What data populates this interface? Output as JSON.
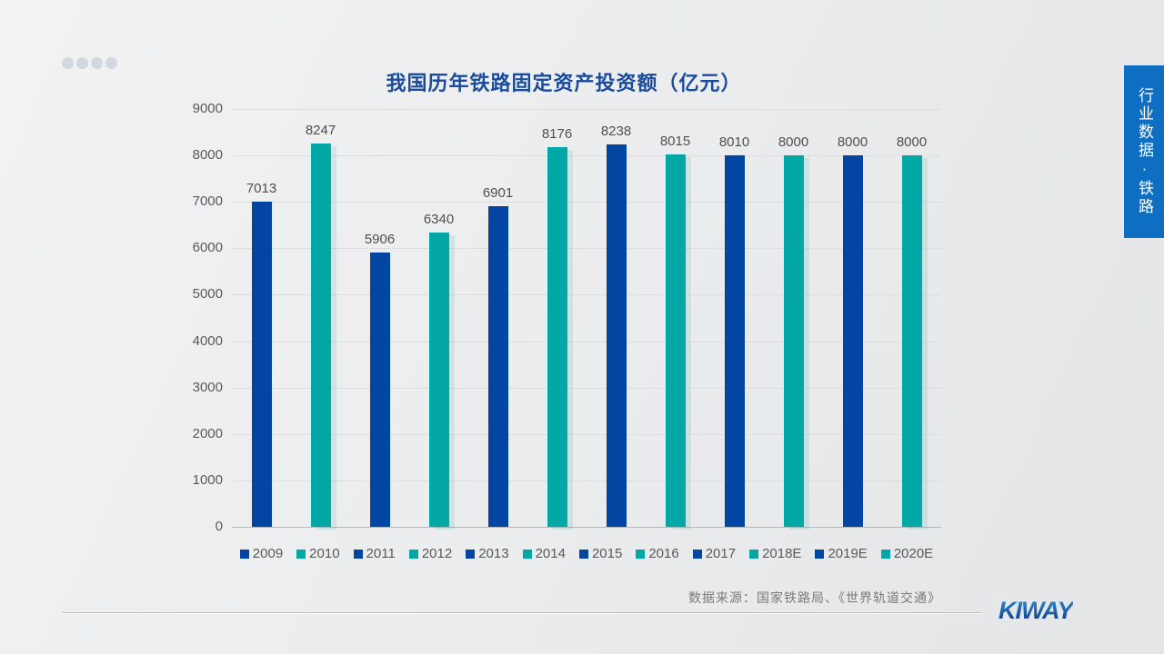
{
  "title": "我国历年铁路固定资产投资额（亿元）",
  "side_tab": {
    "label": "行业数据·铁路"
  },
  "footer": {
    "source": "数据来源：国家铁路局、《世界轨道交通》",
    "logo": "KIWAY"
  },
  "chart_data": {
    "type": "bar",
    "categories": [
      "2009",
      "2010",
      "2011",
      "2012",
      "2013",
      "2014",
      "2015",
      "2016",
      "2017",
      "2018E",
      "2019E",
      "2020E"
    ],
    "values": [
      7013,
      8247,
      5906,
      6340,
      6901,
      8176,
      8238,
      8015,
      8010,
      8000,
      8000,
      8000
    ],
    "title": "我国历年铁路固定资产投资额（亿元）",
    "xlabel": "",
    "ylabel": "",
    "ylim": [
      0,
      9000
    ],
    "ytick_step": 1000,
    "grid": true,
    "legend_position": "bottom",
    "alternating_bar_colors": [
      "#0345a2",
      "#02a7a6"
    ],
    "data_labels": true
  },
  "colors": {
    "title_text": "#1b4b9b",
    "bar_blue": "#0345a2",
    "bar_teal": "#02a7a6",
    "axis_text": "#595959",
    "gridline": "#dcddde",
    "banner_bg": "#0e6fc2",
    "source_text": "#7a7a7a",
    "logo_blue": "#174a9c",
    "background": "#ebeced"
  }
}
